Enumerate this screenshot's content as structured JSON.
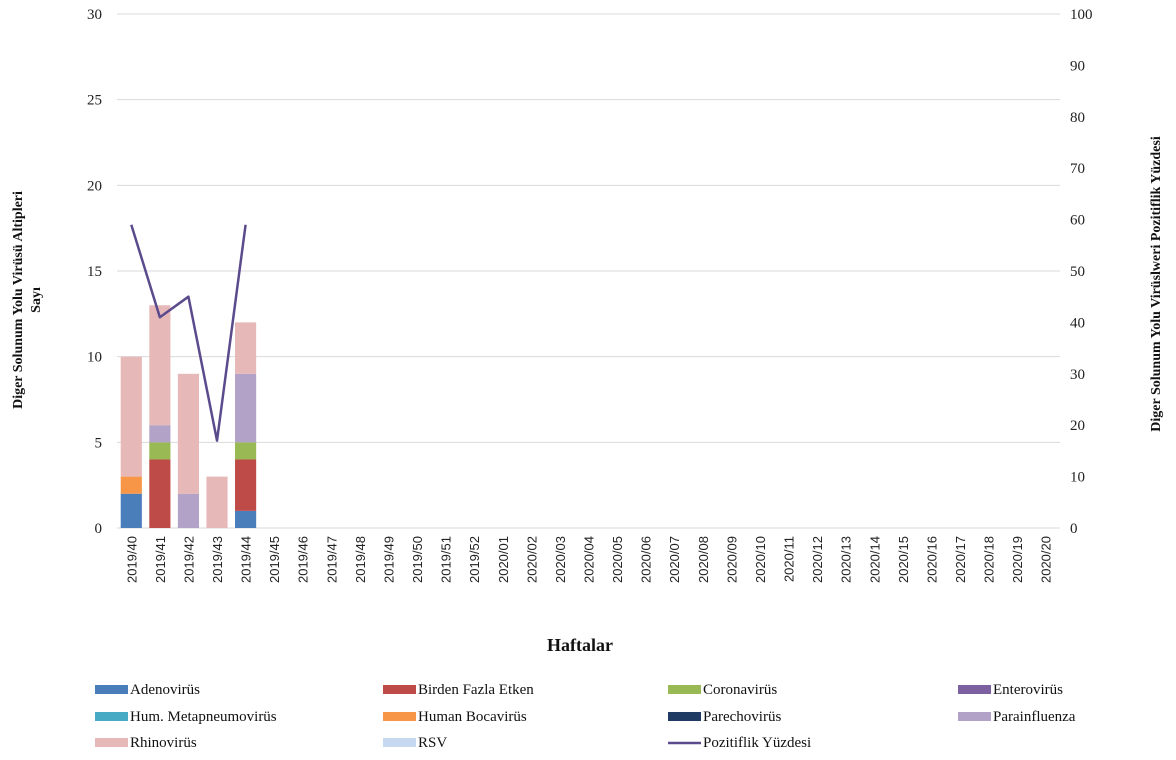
{
  "chart_data": {
    "type": "bar",
    "xlabel": "Haftalar",
    "ylabel_left_line1": "Diger Solunum Yolu Virüsü  Altipleri",
    "ylabel_left_line2": "Sayı",
    "ylabel_right": "Diger Solunum Yolu Virüslweri Pozitiflik Yüzdesi",
    "ylim_left": [
      0,
      30
    ],
    "ylim_right": [
      0,
      100
    ],
    "yticks_left": [
      "0",
      "5",
      "10",
      "15",
      "20",
      "25",
      "30"
    ],
    "yticks_right": [
      "0",
      "10",
      "20",
      "30",
      "40",
      "50",
      "60",
      "70",
      "80",
      "90",
      "100"
    ],
    "grid": true,
    "legend_position": "bottom",
    "categories": [
      "2019/40",
      "2019/41",
      "2019/42",
      "2019/43",
      "2019/44",
      "2019/45",
      "2019/46",
      "2019/47",
      "2019/48",
      "2019/49",
      "2019/50",
      "2019/51",
      "2019/52",
      "2020/01",
      "2020/02",
      "2020/03",
      "2020/04",
      "2020/05",
      "2020/06",
      "2020/07",
      "2020/08",
      "2020/09",
      "2020/10",
      "2020/11",
      "2020/12",
      "2020/13",
      "2020/14",
      "2020/15",
      "2020/16",
      "2020/17",
      "2020/18",
      "2020/19",
      "2020/20"
    ],
    "series": [
      {
        "name": "Adenovirüs",
        "color": "#4a7ebb",
        "values": [
          2,
          0,
          0,
          0,
          1,
          0,
          0,
          0,
          0,
          0,
          0,
          0,
          0,
          0,
          0,
          0,
          0,
          0,
          0,
          0,
          0,
          0,
          0,
          0,
          0,
          0,
          0,
          0,
          0,
          0,
          0,
          0,
          0
        ]
      },
      {
        "name": "Birden Fazla Etken",
        "color": "#be4b48",
        "values": [
          0,
          4,
          0,
          0,
          3,
          0,
          0,
          0,
          0,
          0,
          0,
          0,
          0,
          0,
          0,
          0,
          0,
          0,
          0,
          0,
          0,
          0,
          0,
          0,
          0,
          0,
          0,
          0,
          0,
          0,
          0,
          0,
          0
        ]
      },
      {
        "name": "Coronavirüs",
        "color": "#98b954",
        "values": [
          0,
          1,
          0,
          0,
          1,
          0,
          0,
          0,
          0,
          0,
          0,
          0,
          0,
          0,
          0,
          0,
          0,
          0,
          0,
          0,
          0,
          0,
          0,
          0,
          0,
          0,
          0,
          0,
          0,
          0,
          0,
          0,
          0
        ]
      },
      {
        "name": "Enterovirüs",
        "color": "#7d60a0",
        "values": [
          0,
          0,
          0,
          0,
          0,
          0,
          0,
          0,
          0,
          0,
          0,
          0,
          0,
          0,
          0,
          0,
          0,
          0,
          0,
          0,
          0,
          0,
          0,
          0,
          0,
          0,
          0,
          0,
          0,
          0,
          0,
          0,
          0
        ]
      },
      {
        "name": "Hum. Metapneumovirüs",
        "color": "#46aac5",
        "values": [
          0,
          0,
          0,
          0,
          0,
          0,
          0,
          0,
          0,
          0,
          0,
          0,
          0,
          0,
          0,
          0,
          0,
          0,
          0,
          0,
          0,
          0,
          0,
          0,
          0,
          0,
          0,
          0,
          0,
          0,
          0,
          0,
          0
        ]
      },
      {
        "name": "Human Bocavirüs",
        "color": "#f79646",
        "values": [
          1,
          0,
          0,
          0,
          0,
          0,
          0,
          0,
          0,
          0,
          0,
          0,
          0,
          0,
          0,
          0,
          0,
          0,
          0,
          0,
          0,
          0,
          0,
          0,
          0,
          0,
          0,
          0,
          0,
          0,
          0,
          0,
          0
        ]
      },
      {
        "name": "Parechovirüs",
        "color": "#1f3b63",
        "values": [
          0,
          0,
          0,
          0,
          0,
          0,
          0,
          0,
          0,
          0,
          0,
          0,
          0,
          0,
          0,
          0,
          0,
          0,
          0,
          0,
          0,
          0,
          0,
          0,
          0,
          0,
          0,
          0,
          0,
          0,
          0,
          0,
          0
        ]
      },
      {
        "name": "Parainfluenza",
        "color": "#b3a2c7",
        "values": [
          0,
          1,
          2,
          0,
          4,
          0,
          0,
          0,
          0,
          0,
          0,
          0,
          0,
          0,
          0,
          0,
          0,
          0,
          0,
          0,
          0,
          0,
          0,
          0,
          0,
          0,
          0,
          0,
          0,
          0,
          0,
          0,
          0
        ]
      },
      {
        "name": "Rhinovirüs",
        "color": "#e6b9b8",
        "values": [
          7,
          7,
          7,
          3,
          3,
          0,
          0,
          0,
          0,
          0,
          0,
          0,
          0,
          0,
          0,
          0,
          0,
          0,
          0,
          0,
          0,
          0,
          0,
          0,
          0,
          0,
          0,
          0,
          0,
          0,
          0,
          0,
          0
        ]
      },
      {
        "name": "RSV",
        "color": "#c6d9f1",
        "values": [
          0,
          0,
          0,
          0,
          0,
          0,
          0,
          0,
          0,
          0,
          0,
          0,
          0,
          0,
          0,
          0,
          0,
          0,
          0,
          0,
          0,
          0,
          0,
          0,
          0,
          0,
          0,
          0,
          0,
          0,
          0,
          0,
          0
        ]
      }
    ],
    "line_series": {
      "name": "Pozitiflik Yüzdesi",
      "color": "#5b4a8c",
      "axis": "right",
      "values": [
        59,
        41,
        45,
        17,
        59
      ]
    }
  }
}
